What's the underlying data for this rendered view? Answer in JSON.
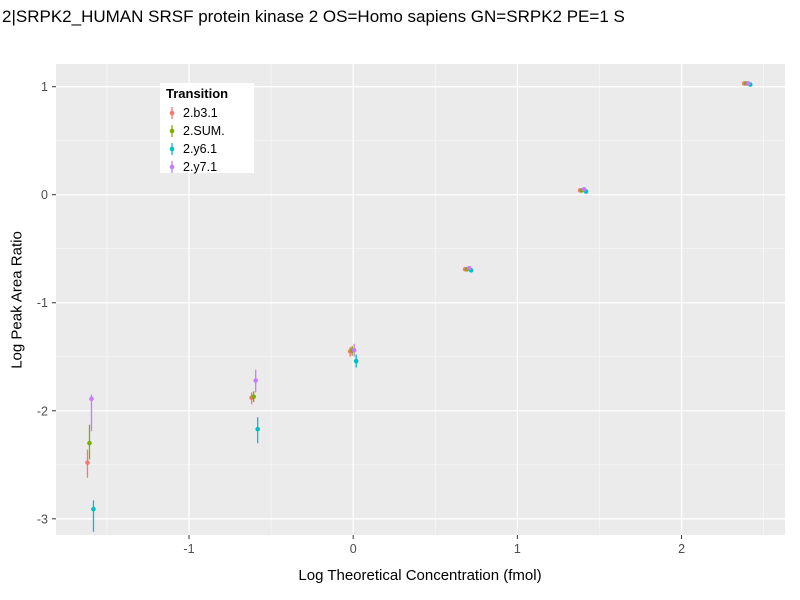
{
  "chart_data": {
    "type": "scatter",
    "title": "2|SRPK2_HUMAN SRSF protein kinase 2 OS=Homo sapiens GN=SRPK2 PE=1 S",
    "xlabel": "Log Theoretical Concentration (fmol)",
    "ylabel": "Log Peak Area Ratio",
    "xlim": [
      -1.81,
      2.63
    ],
    "ylim": [
      -3.15,
      1.21
    ],
    "xticks": [
      -1,
      0,
      1,
      2
    ],
    "yticks": [
      -3,
      -2,
      -1,
      0,
      1
    ],
    "grid": true,
    "panel_bg": "#EBEBEB",
    "gridline_color": "#FFFFFF",
    "tick_label_color": "#4D4D4D",
    "legend": {
      "title": "Transition",
      "position": "top-left-inside"
    },
    "series": [
      {
        "name": "2.b3.1",
        "color": "#F8766D",
        "points": [
          {
            "x": -1.6,
            "y": -2.48,
            "ymin": -2.62,
            "ymax": -2.36
          },
          {
            "x": -0.6,
            "y": -1.88,
            "ymin": -1.94,
            "ymax": -1.83
          },
          {
            "x": 0,
            "y": -1.45,
            "ymin": -1.5,
            "ymax": -1.41
          },
          {
            "x": 0.7,
            "y": -0.69,
            "ymin": -0.71,
            "ymax": -0.67
          },
          {
            "x": 1.4,
            "y": 0.04,
            "ymin": 0.03,
            "ymax": 0.05
          },
          {
            "x": 2.4,
            "y": 1.03,
            "ymin": 1.02,
            "ymax": 1.04
          }
        ]
      },
      {
        "name": "2.SUM.",
        "color": "#7CAE00",
        "points": [
          {
            "x": -1.6,
            "y": -2.3,
            "ymin": -2.45,
            "ymax": -2.13
          },
          {
            "x": -0.6,
            "y": -1.87,
            "ymin": -1.92,
            "ymax": -1.82
          },
          {
            "x": 0,
            "y": -1.44,
            "ymin": -1.49,
            "ymax": -1.4
          },
          {
            "x": 0.7,
            "y": -0.69,
            "ymin": -0.71,
            "ymax": -0.67
          },
          {
            "x": 1.4,
            "y": 0.04,
            "ymin": 0.03,
            "ymax": 0.05
          },
          {
            "x": 2.4,
            "y": 1.03,
            "ymin": 1.02,
            "ymax": 1.04
          }
        ]
      },
      {
        "name": "2.y6.1",
        "color": "#00BFC4",
        "points": [
          {
            "x": -1.6,
            "y": -2.91,
            "ymin": -3.12,
            "ymax": -2.83
          },
          {
            "x": -0.6,
            "y": -2.17,
            "ymin": -2.3,
            "ymax": -2.06
          },
          {
            "x": 0,
            "y": -1.54,
            "ymin": -1.6,
            "ymax": -1.48
          },
          {
            "x": 0.7,
            "y": -0.7,
            "ymin": -0.72,
            "ymax": -0.68
          },
          {
            "x": 1.4,
            "y": 0.03,
            "ymin": 0.02,
            "ymax": 0.04
          },
          {
            "x": 2.4,
            "y": 1.02,
            "ymin": 1.01,
            "ymax": 1.03
          }
        ]
      },
      {
        "name": "2.y7.1",
        "color": "#C77CFF",
        "points": [
          {
            "x": -1.6,
            "y": -1.89,
            "ymin": -2.19,
            "ymax": -1.85
          },
          {
            "x": -0.6,
            "y": -1.72,
            "ymin": -1.83,
            "ymax": -1.62
          },
          {
            "x": 0,
            "y": -1.44,
            "ymin": -1.5,
            "ymax": -1.38
          },
          {
            "x": 0.7,
            "y": -0.68,
            "ymin": -0.7,
            "ymax": -0.66
          },
          {
            "x": 1.4,
            "y": 0.05,
            "ymin": 0.04,
            "ymax": 0.06
          },
          {
            "x": 2.4,
            "y": 1.03,
            "ymin": 1.02,
            "ymax": 1.04
          }
        ]
      }
    ]
  }
}
